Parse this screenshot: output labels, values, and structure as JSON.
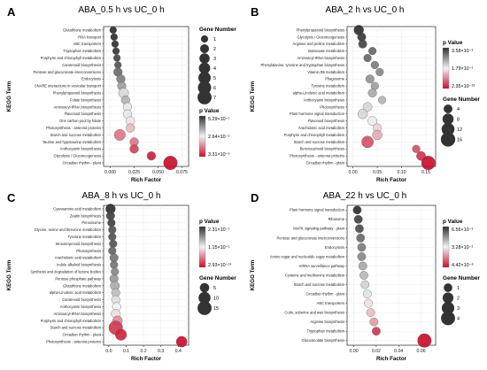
{
  "chart_data": [
    {
      "type": "scatter",
      "panel_label": "A",
      "title": "ABA_0.5 h vs UC_0 h",
      "xlabel": "Rich Factor",
      "ylabel": "KEGG Term",
      "xticks": [
        0.0,
        0.025,
        0.05,
        0.075
      ],
      "xtick_labels": [
        "0.000",
        "0.025",
        "0.050",
        "0.075"
      ],
      "xlim": [
        -0.007,
        0.082
      ],
      "color_legend": {
        "title": "p Value",
        "labels": [
          "5.29×10⁻¹",
          "2.64×10⁻¹",
          "3.31×10⁻⁶"
        ]
      },
      "size_legend": {
        "title": "Gene Number",
        "labels": [
          "1",
          "2",
          "3",
          "4",
          "5",
          "6",
          "7"
        ]
      },
      "terms": [
        "Glutathione metabolism",
        "RNA transport",
        "ABC transporters",
        "Tryptophan metabolism",
        "Porphyrin and chlorophyll metabolism",
        "Carotenoid biosynthesis",
        "Pentose and glucuronate interconversions",
        "Endocytosis",
        "SNARE interactions in vesicular transport",
        "Phenylpropanoid biosynthesis",
        "Folate biosynthesis",
        "Aminoacyl-tRNA biosynthesis",
        "Flavonoid biosynthesis",
        "One carbon pool by folate",
        "Photosynthesis - antenna proteins",
        "Starch and sucrose metabolism",
        "Taurine and hypotaurine metabolism",
        "Anthocyanin biosynthesis",
        "Glycolysis / Gluconeogenesis",
        "Circadian rhythm - plant"
      ],
      "rich_factor": [
        0.003,
        0.004,
        0.005,
        0.006,
        0.007,
        0.008,
        0.008,
        0.011,
        0.012,
        0.014,
        0.016,
        0.018,
        0.018,
        0.021,
        0.021,
        0.01,
        0.025,
        0.025,
        0.043,
        0.063
      ],
      "gene_number": [
        1,
        1,
        1,
        1,
        1,
        1,
        2,
        2,
        2,
        3,
        2,
        2,
        2,
        2,
        2,
        4,
        2,
        2,
        2,
        7
      ],
      "p_value": [
        0.53,
        0.53,
        0.53,
        0.52,
        0.5,
        0.48,
        0.45,
        0.42,
        0.38,
        0.3,
        0.35,
        0.28,
        0.28,
        0.25,
        0.2,
        0.12,
        0.12,
        0.06,
        0.02,
        3e-06
      ]
    },
    {
      "type": "scatter",
      "panel_label": "B",
      "title": "ABA_2 h vs UC_0 h",
      "xlabel": "Rich Factor",
      "ylabel": "KEGG Term",
      "xticks": [
        0.0,
        0.05,
        0.1,
        0.15
      ],
      "xtick_labels": [
        "0.00",
        "0.05",
        "0.10",
        "0.15"
      ],
      "xlim": [
        -0.012,
        0.17
      ],
      "color_legend": {
        "title": "p Value",
        "labels": [
          "3.58×10⁻¹",
          "1.79×10⁻¹",
          "2.35×10⁻¹³"
        ]
      },
      "size_legend": {
        "title": "Gene Number",
        "labels": [
          "4",
          "8",
          "12",
          "16"
        ]
      },
      "terms": [
        "Phenylpropanoid biosynthesis",
        "Glycolysis / Gluconeogenesis",
        "Arginine and proline metabolism",
        "Butanoate metabolism",
        "Aminoacyl-tRNA biosynthesis",
        "Phenylalanine, tyrosine and tryptophan biosynthesis",
        "Vitamin B6 metabolism",
        "Phagosome",
        "Tyrosine metabolism",
        "alpha-Linolenic acid metabolism",
        "Anthocyanin biosynthesis",
        "Photosynthesis",
        "Plant hormone signal transduction",
        "Flavonoid biosynthesis",
        "Arachidonic acid metabolism",
        "Porphyrin and chlorophyll metabolism",
        "Starch and sucrose metabolism",
        "Benzoxazinoid biosynthesis",
        "Photosynthesis - antenna proteins",
        "Circadian rhythm - plant"
      ],
      "rich_factor": [
        0.012,
        0.018,
        0.02,
        0.04,
        0.03,
        0.045,
        0.055,
        0.035,
        0.045,
        0.04,
        0.06,
        0.03,
        0.02,
        0.04,
        0.05,
        0.05,
        0.03,
        0.13,
        0.14,
        0.155
      ],
      "gene_number": [
        6,
        4,
        4,
        3,
        3,
        3,
        3,
        4,
        3,
        4,
        3,
        5,
        6,
        5,
        4,
        6,
        10,
        3,
        5,
        15
      ],
      "p_value": [
        0.35,
        0.34,
        0.33,
        0.3,
        0.3,
        0.28,
        0.27,
        0.26,
        0.25,
        0.24,
        0.23,
        0.2,
        0.2,
        0.18,
        0.15,
        0.12,
        0.05,
        0.05,
        0.03,
        2e-13
      ]
    },
    {
      "type": "scatter",
      "panel_label": "C",
      "title": "ABA_8 h vs UC_0 h",
      "xlabel": "Rich Factor",
      "ylabel": "KEGG Term",
      "xticks": [
        0.0,
        0.1,
        0.2,
        0.3,
        0.4
      ],
      "xtick_labels": [
        "0.0",
        "0.1",
        "0.2",
        "0.3",
        "0.4"
      ],
      "xlim": [
        -0.03,
        0.46
      ],
      "color_legend": {
        "title": "p Value",
        "labels": [
          "2.31×10⁻¹",
          "1.15×10⁻¹",
          "2.93×10⁻¹⁴"
        ]
      },
      "size_legend": {
        "title": "Gene Number",
        "labels": [
          "5",
          "10",
          "15"
        ]
      },
      "terms": [
        "Cyanoamino acid metabolism",
        "Zeatin biosynthesis",
        "Peroxisome",
        "Glycine, serine and threonine metabolism",
        "Tyrosine metabolism",
        "Monoterpenoid biosynthesis",
        "Photosynthesis",
        "Arachidonic acid metabolism",
        "Indole alkaloid biosynthesis",
        "Synthesis and degradation of ketone bodies",
        "Pentose phosphate pathway",
        "Glutathione metabolism",
        "alpha-Linolenic acid metabolism",
        "Carotenoid biosynthesis",
        "Anthocyanin biosynthesis",
        "Aminoacyl-tRNA biosynthesis",
        "Porphyrin and chlorophyll metabolism",
        "Starch and sucrose metabolism",
        "Circadian rhythm - plant",
        "Photosynthesis - antenna proteins"
      ],
      "rich_factor": [
        0.01,
        0.01,
        0.015,
        0.02,
        0.02,
        0.025,
        0.02,
        0.03,
        0.03,
        0.035,
        0.03,
        0.035,
        0.04,
        0.04,
        0.045,
        0.04,
        0.05,
        0.04,
        0.07,
        0.42
      ],
      "gene_number": [
        6,
        4,
        3,
        3,
        3,
        3,
        3,
        4,
        3,
        3,
        4,
        5,
        4,
        4,
        4,
        5,
        6,
        15,
        9,
        8
      ],
      "p_value": [
        0.22,
        0.21,
        0.21,
        0.2,
        0.2,
        0.2,
        0.19,
        0.18,
        0.18,
        0.17,
        0.16,
        0.15,
        0.14,
        0.12,
        0.11,
        0.1,
        0.06,
        0.02,
        0.01,
        3e-14
      ]
    },
    {
      "type": "scatter",
      "panel_label": "D",
      "title": "ABA_22 h vs UC_0 h",
      "xlabel": "Rich Factor",
      "ylabel": "KEGG Term",
      "xticks": [
        0.0,
        0.02,
        0.04,
        0.06
      ],
      "xtick_labels": [
        "0.00",
        "0.02",
        "0.04",
        "0.06"
      ],
      "xlim": [
        -0.006,
        0.073
      ],
      "color_legend": {
        "title": "p Value",
        "labels": [
          "6.56×10⁻¹",
          "3.28×10⁻¹",
          "4.42×10⁻⁶"
        ]
      },
      "size_legend": {
        "title": "Gene Number",
        "labels": [
          "1",
          "2",
          "3",
          "4"
        ]
      },
      "terms": [
        "Plant hormone signal transduction",
        "Ribosome",
        "MAPK signaling pathway - plant",
        "Pentose and glucuronate interconversions",
        "Endocytosis",
        "Amino sugar and nucleotide sugar metabolism",
        "mRNA surveillance pathway",
        "Cysteine and methionine metabolism",
        "Starch and sucrose metabolism",
        "Circadian rhythm - plant",
        "ABC transporters",
        "Cutin, suberine and wax biosynthesis",
        "Arginine biosynthesis",
        "Tryptophan metabolism",
        "Glucosinolate biosynthesis"
      ],
      "rich_factor": [
        0.003,
        0.004,
        0.005,
        0.006,
        0.007,
        0.007,
        0.008,
        0.009,
        0.01,
        0.012,
        0.013,
        0.015,
        0.018,
        0.02,
        0.063
      ],
      "gene_number": [
        1,
        1,
        1,
        1,
        1,
        1,
        1,
        1,
        1,
        1,
        1,
        1,
        1,
        1,
        4
      ],
      "p_value": [
        0.65,
        0.62,
        0.6,
        0.55,
        0.52,
        0.5,
        0.45,
        0.42,
        0.38,
        0.35,
        0.3,
        0.25,
        0.2,
        0.06,
        4e-06
      ]
    }
  ]
}
